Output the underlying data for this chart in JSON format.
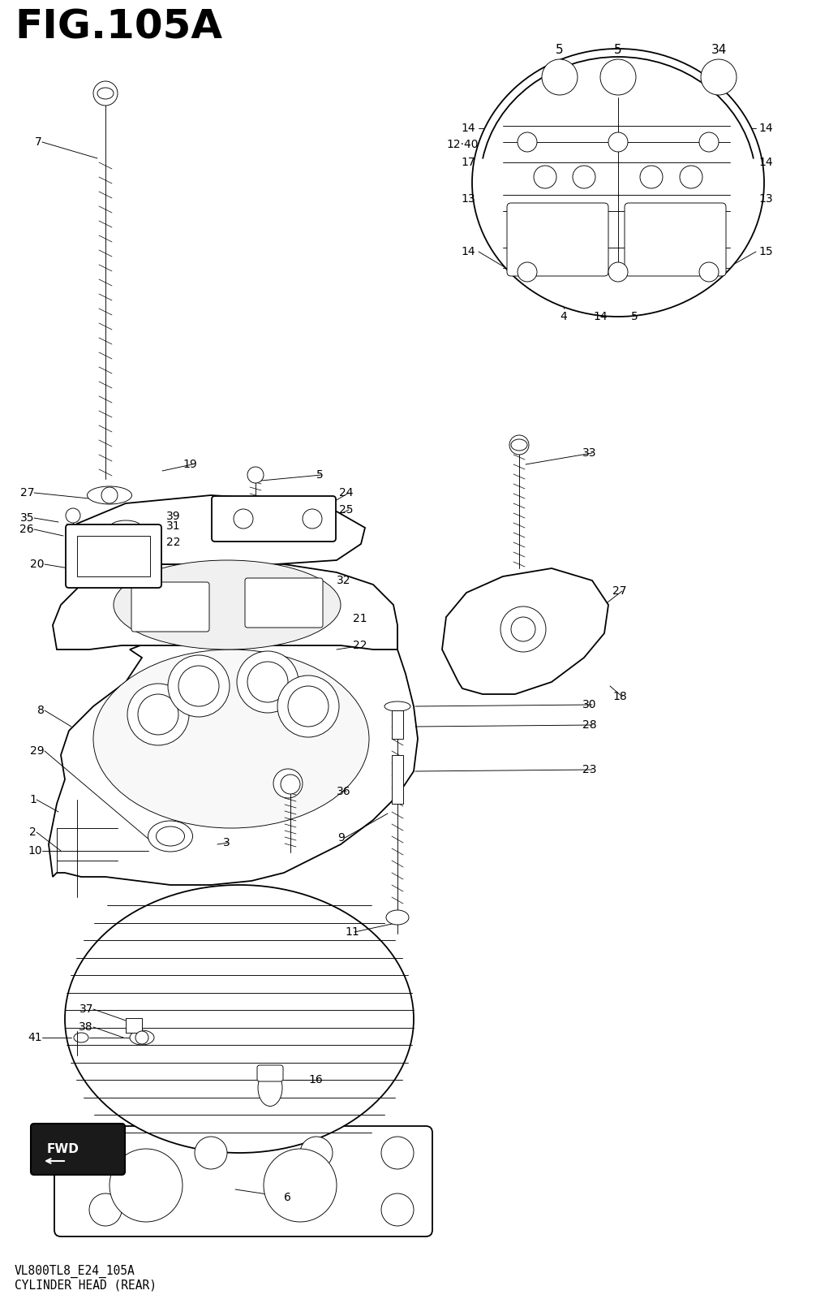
{
  "title": "FIG.105A",
  "subtitle1": "VL800TL8_E24_105A",
  "subtitle2": "CYLINDER HEAD (REAR)",
  "bg_color": "#ffffff",
  "title_fontsize": 36,
  "subtitle_fontsize": 10.5,
  "fig_width": 10.22,
  "fig_height": 16.0,
  "dpi": 100,
  "label_fontsize": 10,
  "lw_main": 1.3,
  "lw_thin": 0.65,
  "lw_leader": 0.65
}
